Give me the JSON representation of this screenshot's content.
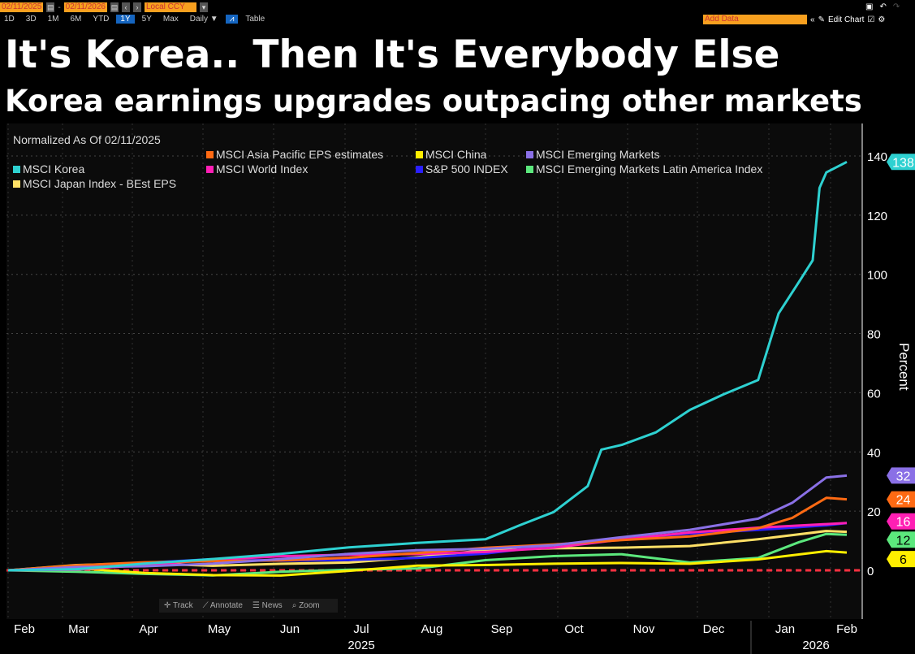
{
  "toolbar": {
    "start_date": "02/11/2025",
    "end_date": "02/11/2026",
    "currency": "Local CCY",
    "ranges": [
      "1D",
      "3D",
      "1M",
      "6M",
      "YTD",
      "1Y",
      "5Y",
      "Max"
    ],
    "selected_range": "1Y",
    "frequency": "Daily ▼",
    "table_label": "Table",
    "add_data_placeholder": "Add Data",
    "edit_chart_label": "Edit Chart"
  },
  "title": "It's Korea.. Then It's Everybody Else",
  "subtitle": "Korea earnings upgrades outpacing other markets",
  "chart_data": {
    "type": "line",
    "title": "It's Korea.. Then It's Everybody Else",
    "subtitle": "Korea earnings upgrades outpacing other markets",
    "note": "Normalized As Of 02/11/2025",
    "ylabel": "Percent",
    "ylim": [
      -17,
      150
    ],
    "yticks": [
      0,
      20,
      40,
      60,
      80,
      100,
      120,
      140
    ],
    "x_ticks": [
      "Feb",
      "Mar",
      "Apr",
      "May",
      "Jun",
      "Jul",
      "Aug",
      "Sep",
      "Oct",
      "Nov",
      "Dec",
      "Jan",
      "Feb"
    ],
    "year_labels": [
      "2025",
      "2026"
    ],
    "x_units": "months since 02/11/2025",
    "series": [
      {
        "name": "MSCI Asia Pacific EPS estimates",
        "color": "#ff6a13",
        "last": 24,
        "points": [
          [
            0,
            0
          ],
          [
            1,
            1
          ],
          [
            2,
            2
          ],
          [
            3,
            3
          ],
          [
            4,
            4
          ],
          [
            5,
            5
          ],
          [
            6,
            6
          ],
          [
            7,
            7
          ],
          [
            8,
            8
          ],
          [
            9,
            10
          ],
          [
            10,
            12
          ],
          [
            11,
            15
          ],
          [
            11.5,
            18
          ],
          [
            12,
            24
          ],
          [
            12.3,
            24
          ]
        ]
      },
      {
        "name": "MSCI China",
        "color": "#ffee00",
        "last": 6,
        "points": [
          [
            0,
            0
          ],
          [
            1,
            0
          ],
          [
            2,
            -1
          ],
          [
            3,
            -1
          ],
          [
            4,
            -1
          ],
          [
            5,
            0
          ],
          [
            6,
            1
          ],
          [
            7,
            1
          ],
          [
            8,
            2
          ],
          [
            9,
            3
          ],
          [
            10,
            3
          ],
          [
            11,
            4
          ],
          [
            12,
            6
          ],
          [
            12.3,
            6
          ]
        ]
      },
      {
        "name": "MSCI Emerging Markets",
        "color": "#8a70e6",
        "last": 32,
        "points": [
          [
            0,
            0
          ],
          [
            1,
            1
          ],
          [
            2,
            2
          ],
          [
            3,
            3
          ],
          [
            4,
            4
          ],
          [
            5,
            5
          ],
          [
            6,
            6
          ],
          [
            7,
            7
          ],
          [
            8,
            9
          ],
          [
            9,
            12
          ],
          [
            10,
            14
          ],
          [
            11,
            17
          ],
          [
            11.5,
            22
          ],
          [
            12,
            31
          ],
          [
            12.3,
            32
          ]
        ]
      },
      {
        "name": "MSCI Korea",
        "color": "#2ed1d1",
        "last": 138,
        "points": [
          [
            0,
            0
          ],
          [
            1,
            1
          ],
          [
            2,
            3
          ],
          [
            3,
            4
          ],
          [
            4,
            5
          ],
          [
            5,
            7
          ],
          [
            6,
            9
          ],
          [
            7,
            11
          ],
          [
            7.5,
            16
          ],
          [
            8,
            20
          ],
          [
            8.5,
            28
          ],
          [
            8.7,
            40
          ],
          [
            9,
            42
          ],
          [
            9.5,
            47
          ],
          [
            10,
            55
          ],
          [
            10.5,
            60
          ],
          [
            11,
            64
          ],
          [
            11.3,
            86
          ],
          [
            11.6,
            97
          ],
          [
            11.8,
            105
          ],
          [
            11.9,
            130
          ],
          [
            12,
            135
          ],
          [
            12.3,
            138
          ]
        ]
      },
      {
        "name": "MSCI World Index",
        "color": "#ff1fb4",
        "last": 16,
        "points": [
          [
            0,
            0
          ],
          [
            1,
            1
          ],
          [
            2,
            2
          ],
          [
            3,
            3
          ],
          [
            4,
            4
          ],
          [
            5,
            5
          ],
          [
            6,
            6
          ],
          [
            7,
            7
          ],
          [
            8,
            8
          ],
          [
            9,
            10
          ],
          [
            10,
            12
          ],
          [
            11,
            14
          ],
          [
            12,
            16
          ],
          [
            12.3,
            16
          ]
        ]
      },
      {
        "name": "S&P 500 INDEX",
        "color": "#2a1fff",
        "last": 16,
        "points": [
          [
            0,
            0
          ],
          [
            1,
            1
          ],
          [
            2,
            2
          ],
          [
            3,
            3
          ],
          [
            4,
            3
          ],
          [
            5,
            4
          ],
          [
            6,
            5
          ],
          [
            7,
            6
          ],
          [
            8,
            8
          ],
          [
            9,
            10
          ],
          [
            10,
            12
          ],
          [
            11,
            14
          ],
          [
            12,
            16
          ],
          [
            12.3,
            16
          ]
        ]
      },
      {
        "name": "MSCI Emerging Markets Latin America Index",
        "color": "#5ce87d",
        "last": 12,
        "points": [
          [
            0,
            0
          ],
          [
            1,
            -1
          ],
          [
            2,
            -2
          ],
          [
            3,
            -2
          ],
          [
            4,
            0
          ],
          [
            5,
            1
          ],
          [
            6,
            1
          ],
          [
            7,
            3
          ],
          [
            8,
            4
          ],
          [
            9,
            5
          ],
          [
            10,
            3
          ],
          [
            11,
            5
          ],
          [
            11.6,
            10
          ],
          [
            12,
            12
          ],
          [
            12.3,
            12
          ]
        ]
      },
      {
        "name": "MSCI Japan Index - BEst EPS",
        "color": "#ffe066",
        "last": 13,
        "points": [
          [
            0,
            0
          ],
          [
            1,
            1
          ],
          [
            2,
            2
          ],
          [
            3,
            2
          ],
          [
            4,
            3
          ],
          [
            5,
            3
          ],
          [
            6,
            4
          ],
          [
            7,
            6
          ],
          [
            8,
            7
          ],
          [
            9,
            8
          ],
          [
            10,
            9
          ],
          [
            11,
            11
          ],
          [
            12,
            13
          ],
          [
            12.3,
            13
          ]
        ]
      }
    ]
  },
  "chart_tools": [
    "Track",
    "Annotate",
    "News",
    "Zoom"
  ]
}
